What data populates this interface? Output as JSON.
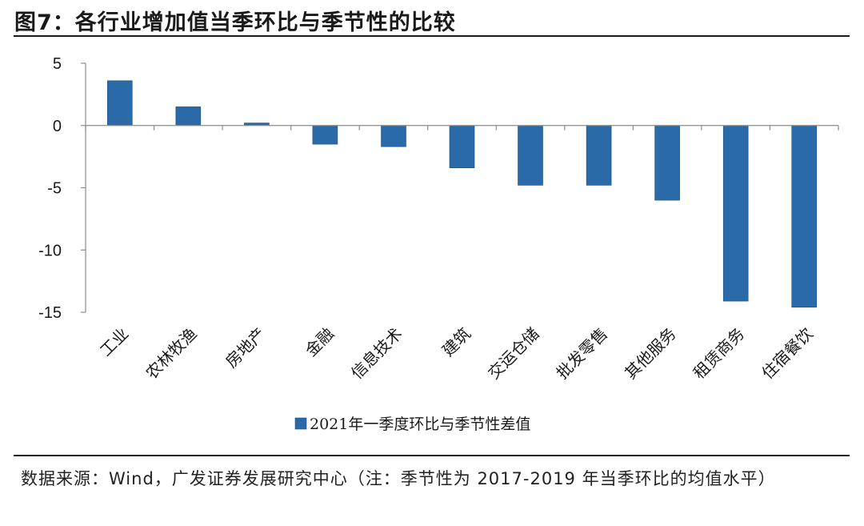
{
  "header": {
    "title": "图7：各行业增加值当季环比与季节性的比较"
  },
  "footer": {
    "source": "数据来源：Wind，广发证券发展研究中心（注：季节性为 2017-2019 年当季环比的均值水平）"
  },
  "chart_data": {
    "type": "bar",
    "title": "",
    "xlabel": "",
    "ylabel": "",
    "ylim": [
      -15,
      5
    ],
    "yticks": [
      5,
      0,
      -5,
      -10,
      -15
    ],
    "grid": false,
    "legend_position": "bottom-center",
    "categories": [
      "工业",
      "农林牧渔",
      "房地产",
      "金融",
      "信息技术",
      "建筑",
      "交运仓储",
      "批发零售",
      "其他服务",
      "租赁商务",
      "住宿餐饮"
    ],
    "series": [
      {
        "name": "2021年一季度环比与季节性差值",
        "color": "#2a6aa8",
        "values": [
          3.6,
          1.5,
          0.2,
          -1.5,
          -1.7,
          -3.4,
          -4.8,
          -4.8,
          -6.0,
          -14.1,
          -14.6
        ]
      }
    ]
  }
}
